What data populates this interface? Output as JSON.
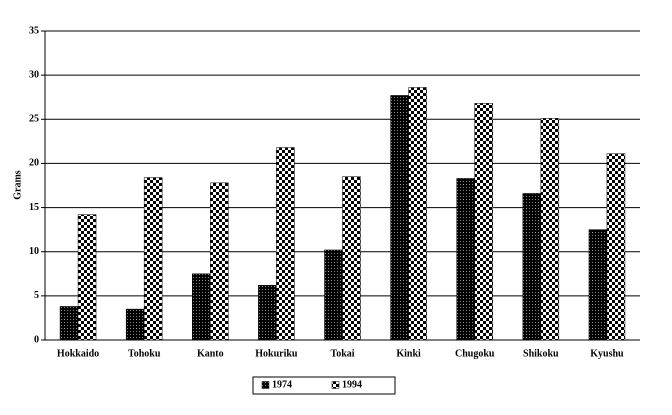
{
  "chart_data": {
    "type": "bar",
    "y_label": "Grams",
    "categories": [
      "Hokkaido",
      "Tohoku",
      "Kanto",
      "Hokuriku",
      "Tokai",
      "Kinki",
      "Chugoku",
      "Shikoku",
      "Kyushu"
    ],
    "series": [
      {
        "name": "1974",
        "color": "#000000",
        "values": [
          3.8,
          3.5,
          7.5,
          6.2,
          10.2,
          27.7,
          18.3,
          16.6,
          12.5
        ]
      },
      {
        "name": "1994",
        "color": "#000000",
        "values": [
          14.2,
          18.4,
          17.8,
          21.8,
          18.5,
          28.6,
          26.8,
          25.1,
          21.1
        ]
      }
    ],
    "ylim": [
      0,
      35
    ],
    "yticks": [
      0,
      5,
      10,
      15,
      20,
      25,
      30,
      35
    ],
    "grid": true,
    "legend": "bottom"
  }
}
